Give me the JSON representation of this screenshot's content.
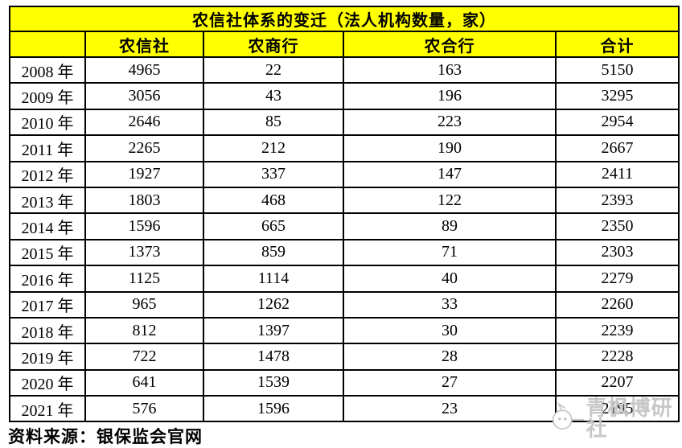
{
  "page": {
    "source_note": "资料来源：银保监会官网",
    "watermark_text": "青枫博研社"
  },
  "table": {
    "headers": [
      "",
      "农信社",
      "农商行",
      "农合行",
      "合计"
    ]
  },
  "chart_data": {
    "type": "table",
    "title": "农信社体系的变迁（法人机构数量，家）",
    "categories": [
      "2008 年",
      "2009 年",
      "2010 年",
      "2011 年",
      "2012 年",
      "2013 年",
      "2014 年",
      "2015 年",
      "2016 年",
      "2017 年",
      "2018 年",
      "2019 年",
      "2020 年",
      "2021 年"
    ],
    "series": [
      {
        "name": "农信社",
        "values": [
          4965,
          3056,
          2646,
          2265,
          1927,
          1803,
          1596,
          1373,
          1125,
          965,
          812,
          722,
          641,
          576
        ]
      },
      {
        "name": "农商行",
        "values": [
          22,
          43,
          85,
          212,
          337,
          468,
          665,
          859,
          1114,
          1262,
          1397,
          1478,
          1539,
          1596
        ]
      },
      {
        "name": "农合行",
        "values": [
          163,
          196,
          223,
          190,
          147,
          122,
          89,
          71,
          40,
          33,
          30,
          28,
          27,
          23
        ]
      },
      {
        "name": "合计",
        "values": [
          5150,
          3295,
          2954,
          2667,
          2411,
          2393,
          2350,
          2303,
          2279,
          2260,
          2239,
          2228,
          2207,
          2195
        ]
      }
    ],
    "layout": {
      "header_bg": "#FFFF00",
      "border_color": "#000000",
      "grid": true
    }
  },
  "colors": {
    "header_bg": "#FFFF00",
    "border": "#000000",
    "text": "#000000",
    "watermark": "#C7C7C7"
  }
}
